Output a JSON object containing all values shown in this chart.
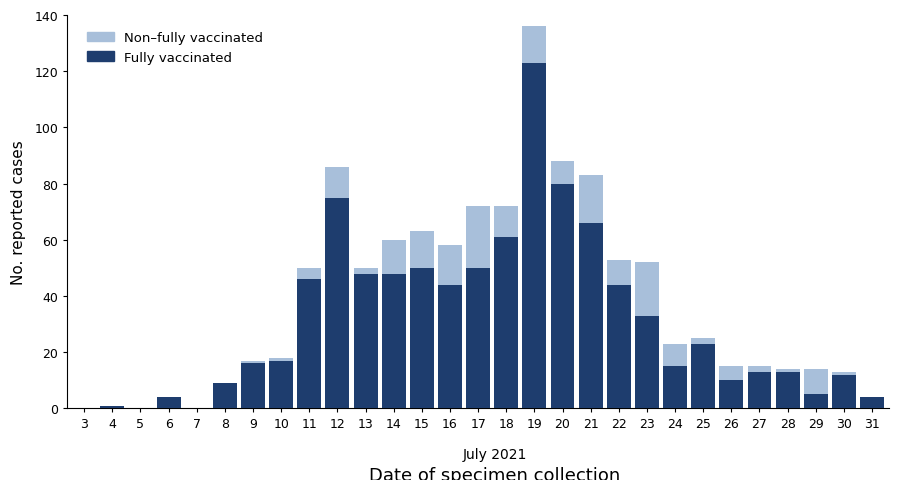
{
  "dates": [
    3,
    4,
    5,
    6,
    7,
    8,
    9,
    10,
    11,
    12,
    13,
    14,
    15,
    16,
    17,
    18,
    19,
    20,
    21,
    22,
    23,
    24,
    25,
    26,
    27,
    28,
    29,
    30,
    31
  ],
  "fully_vaccinated": [
    0,
    1,
    0,
    4,
    0,
    9,
    16,
    17,
    46,
    75,
    48,
    48,
    50,
    44,
    50,
    61,
    123,
    80,
    66,
    44,
    33,
    15,
    23,
    10,
    13,
    13,
    5,
    12,
    4
  ],
  "non_fully_vaccinated": [
    0,
    0,
    0,
    0,
    0,
    0,
    1,
    1,
    4,
    11,
    2,
    12,
    13,
    14,
    22,
    11,
    13,
    8,
    17,
    9,
    19,
    8,
    2,
    5,
    2,
    1,
    9,
    1,
    0
  ],
  "color_fully": "#1e3d6e",
  "color_non_fully": "#a8bfda",
  "ylabel": "No. reported cases",
  "xlabel": "Date of specimen collection",
  "xlabel_sub": "July 2021",
  "ylim": [
    0,
    140
  ],
  "yticks": [
    0,
    20,
    40,
    60,
    80,
    100,
    120,
    140
  ],
  "legend_non_fully": "Non–fully vaccinated",
  "legend_fully": "Fully vaccinated",
  "background_color": "#ffffff"
}
